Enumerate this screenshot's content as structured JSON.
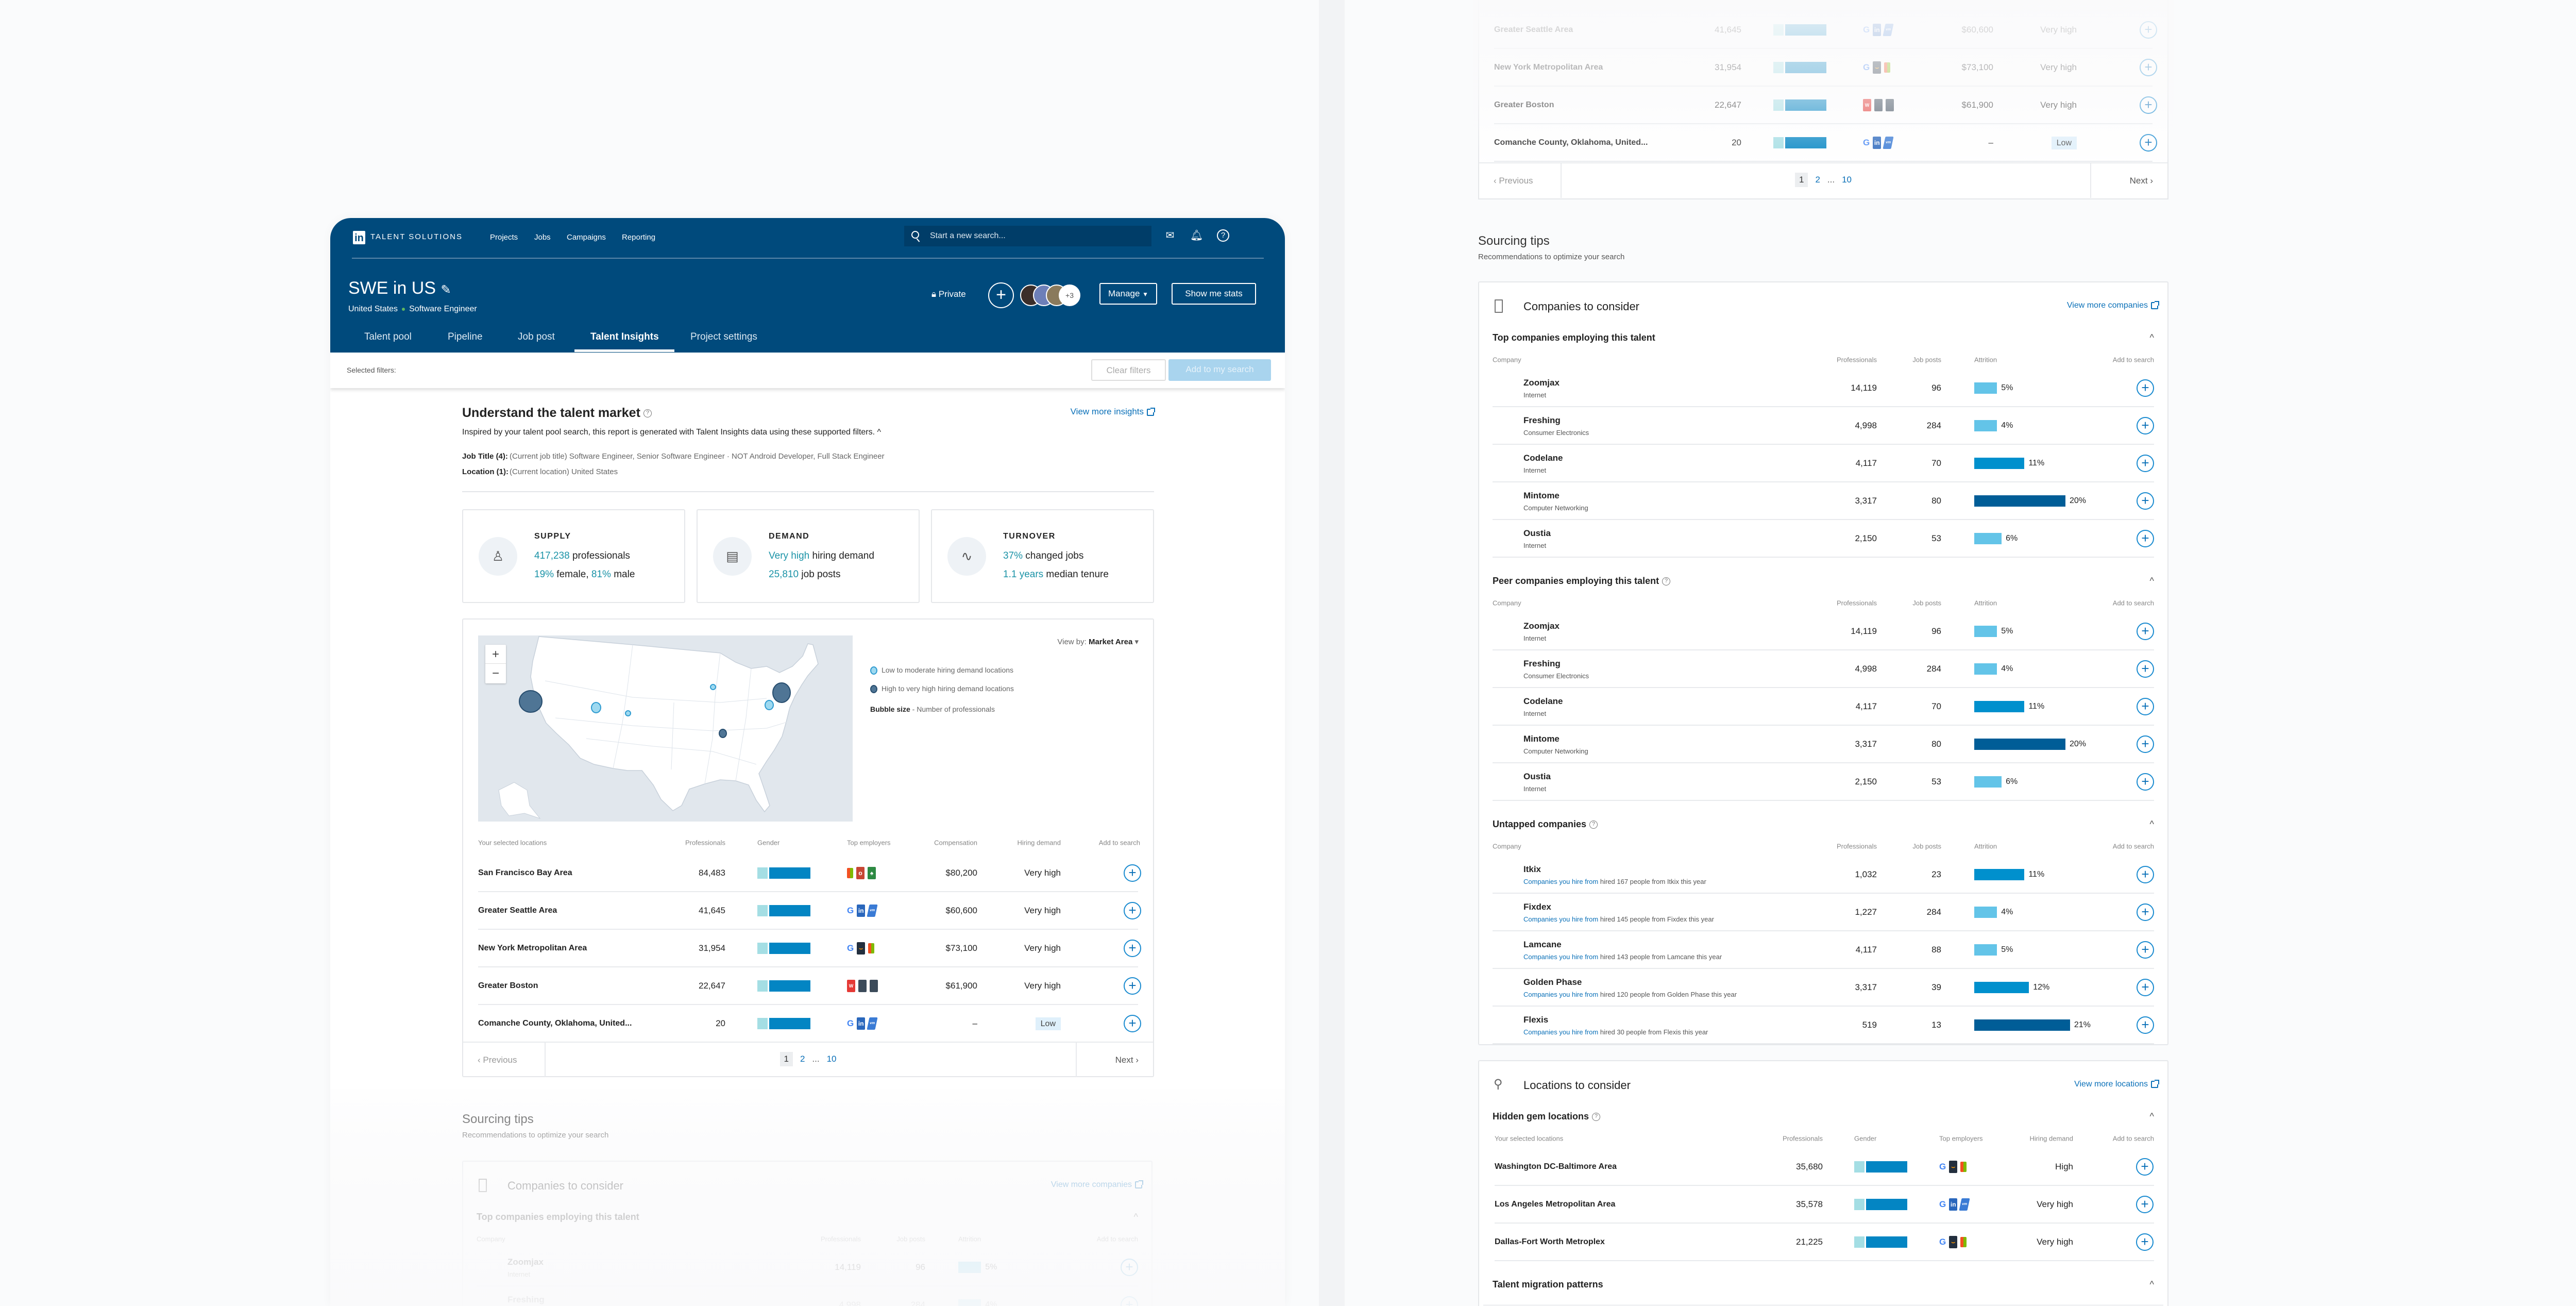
{
  "header": {
    "logo": "in",
    "brand": "TALENT SOLUTIONS",
    "nav": [
      "Projects",
      "Jobs",
      "Campaigns",
      "Reporting"
    ],
    "search_placeholder": "Start a new search...",
    "project_title": "SWE in US",
    "breadcrumb": [
      "United States",
      "Software Engineer"
    ],
    "privacy": "Private",
    "avatars_more": "+3",
    "manage": "Manage",
    "show_stats": "Show me stats",
    "tabs": [
      "Talent pool",
      "Pipeline",
      "Job post",
      "Talent Insights",
      "Project settings"
    ]
  },
  "filters": {
    "label": "Selected filters:",
    "clear": "Clear filters",
    "add": "Add to my search"
  },
  "insights": {
    "title": "Understand the talent market",
    "link": "View more insights",
    "description": "Inspired by your talent pool search, this report is generated with Talent Insights data using these supported filters.",
    "job_title_label": "Job Title (4):",
    "job_title_value": "(Current job title) Software Engineer, Senior Software Engineer · NOT Android Developer, Full Stack Engineer",
    "location_label": "Location (1):",
    "location_value": "(Current location) United States"
  },
  "cards": [
    {
      "label": "SUPPLY",
      "icon": "person-icon",
      "line1": [
        {
          "t": "417,238",
          "hl": true
        },
        {
          "t": " professionals"
        }
      ],
      "line2": [
        {
          "t": "19%",
          "hl": true
        },
        {
          "t": " female, "
        },
        {
          "t": "81%",
          "hl": true
        },
        {
          "t": " male"
        }
      ]
    },
    {
      "label": "DEMAND",
      "icon": "briefcase-icon",
      "line1": [
        {
          "t": "Very high",
          "hl": true
        },
        {
          "t": " hiring demand"
        }
      ],
      "line2": [
        {
          "t": "25,810",
          "hl": true
        },
        {
          "t": " job posts"
        }
      ]
    },
    {
      "label": "TURNOVER",
      "icon": "pulse-icon",
      "line1": [
        {
          "t": "37%",
          "hl": true
        },
        {
          "t": " changed jobs"
        }
      ],
      "line2": [
        {
          "t": "1.1 years",
          "hl": true
        },
        {
          "t": " median tenure"
        }
      ]
    }
  ],
  "map": {
    "view_by_label": "View by:",
    "view_by_value": "Market Area",
    "legend_low": "Low to moderate hiring demand locations",
    "legend_high": "High to very high hiring demand locations",
    "bubble_label": "Bubble size",
    "bubble_desc": " - Number of professionals",
    "zoom_in": "+",
    "zoom_out": "−"
  },
  "locations": {
    "headers": [
      "Your selected locations",
      "Professionals",
      "Gender",
      "Top employers",
      "Compensation",
      "Hiring demand",
      "Add to search"
    ],
    "rows": [
      {
        "name": "San Francisco Bay Area",
        "professionals": "84,483",
        "female_pct": 19,
        "employers": [
          "microsoft",
          "oracle",
          "starbucks"
        ],
        "compensation": "$80,200",
        "demand": "Very high"
      },
      {
        "name": "Greater Seattle Area",
        "professionals": "41,645",
        "female_pct": 19,
        "employers": [
          "google",
          "linkedin",
          "vmware"
        ],
        "compensation": "$60,600",
        "demand": "Very high"
      },
      {
        "name": "New York Metropolitan Area",
        "professionals": "31,954",
        "female_pct": 19,
        "employers": [
          "google",
          "amazon",
          "microsoft"
        ],
        "compensation": "$73,100",
        "demand": "Very high"
      },
      {
        "name": "Greater Boston",
        "professionals": "22,647",
        "female_pct": 19,
        "employers": [
          "wayfair",
          "dark-company",
          "dark-company"
        ],
        "compensation": "$61,900",
        "demand": "Very high"
      },
      {
        "name": "Comanche County, Oklahoma, United...",
        "professionals": "20",
        "female_pct": 19,
        "employers": [
          "google",
          "linkedin",
          "vmware"
        ],
        "compensation": "–",
        "demand": "Low"
      }
    ],
    "pagination": {
      "previous": "Previous",
      "next": "Next",
      "pages": [
        "1",
        "2",
        "...",
        "10"
      ],
      "current": "1"
    }
  },
  "sourcing_left": {
    "title": "Sourcing tips",
    "subtitle": "Recommendations to optimize your search",
    "card_title": "Companies to consider",
    "card_link": "View more companies",
    "section": "Top companies employing this talent",
    "headers": [
      "Company",
      "Professionals",
      "Job posts",
      "Attrition",
      "Add to search"
    ],
    "rows": [
      {
        "name": "Zoomjax",
        "industry": "Internet",
        "professionals": "14,119",
        "jobs": "96",
        "attrition": 5
      },
      {
        "name": "Freshing",
        "industry": "Consumer Electronics",
        "professionals": "4,998",
        "jobs": "284",
        "attrition": 4
      }
    ]
  },
  "right_prev": {
    "rows": [
      {
        "name": "Greater Seattle Area",
        "professionals": "41,645",
        "female_pct": 19,
        "employers": [
          "google",
          "linkedin",
          "vmware"
        ],
        "compensation": "$60,600",
        "demand": "Very high"
      },
      {
        "name": "New York Metropolitan Area",
        "professionals": "31,954",
        "female_pct": 19,
        "employers": [
          "google",
          "amazon",
          "microsoft"
        ],
        "compensation": "$73,100",
        "demand": "Very high"
      },
      {
        "name": "Greater Boston",
        "professionals": "22,647",
        "female_pct": 19,
        "employers": [
          "wayfair",
          "dark-company",
          "dark-company"
        ],
        "compensation": "$61,900",
        "demand": "Very high"
      },
      {
        "name": "Comanche County, Oklahoma, United...",
        "professionals": "20",
        "female_pct": 19,
        "employers": [
          "google",
          "linkedin",
          "vmware"
        ],
        "compensation": "–",
        "demand": "Low"
      }
    ],
    "pagination": {
      "previous": "Previous",
      "next": "Next",
      "pages": [
        "1",
        "2",
        "...",
        "10"
      ]
    }
  },
  "sourcing_right": {
    "title": "Sourcing tips",
    "subtitle": "Recommendations to optimize your search",
    "companies": {
      "title": "Companies to consider",
      "link": "View more companies",
      "headers": [
        "Company",
        "Professionals",
        "Job posts",
        "Attrition",
        "Add to search"
      ],
      "top": {
        "title": "Top companies employing this talent",
        "rows": [
          {
            "name": "Zoomjax",
            "industry": "Internet",
            "professionals": "14,119",
            "jobs": "96",
            "attrition": 5
          },
          {
            "name": "Freshing",
            "industry": "Consumer Electronics",
            "professionals": "4,998",
            "jobs": "284",
            "attrition": 4
          },
          {
            "name": "Codelane",
            "industry": "Internet",
            "professionals": "4,117",
            "jobs": "70",
            "attrition": 11
          },
          {
            "name": "Mintome",
            "industry": "Computer Networking",
            "professionals": "3,317",
            "jobs": "80",
            "attrition": 20
          },
          {
            "name": "Oustia",
            "industry": "Internet",
            "professionals": "2,150",
            "jobs": "53",
            "attrition": 6
          }
        ]
      },
      "peer": {
        "title": "Peer companies employing this talent",
        "rows": [
          {
            "name": "Zoomjax",
            "industry": "Internet",
            "professionals": "14,119",
            "jobs": "96",
            "attrition": 5
          },
          {
            "name": "Freshing",
            "industry": "Consumer Electronics",
            "professionals": "4,998",
            "jobs": "284",
            "attrition": 4
          },
          {
            "name": "Codelane",
            "industry": "Internet",
            "professionals": "4,117",
            "jobs": "70",
            "attrition": 11
          },
          {
            "name": "Mintome",
            "industry": "Computer Networking",
            "professionals": "3,317",
            "jobs": "80",
            "attrition": 20
          },
          {
            "name": "Oustia",
            "industry": "Internet",
            "professionals": "2,150",
            "jobs": "53",
            "attrition": 6
          }
        ]
      },
      "untapped": {
        "title": "Untapped companies",
        "rows": [
          {
            "name": "Itkix",
            "note_link": "Companies you hire from",
            "note": " hired 167 people from Itkix this year",
            "professionals": "1,032",
            "jobs": "23",
            "attrition": 11
          },
          {
            "name": "Fixdex",
            "note_link": "Companies you hire from",
            "note": " hired 145 people from Fixdex this year",
            "professionals": "1,227",
            "jobs": "284",
            "attrition": 4
          },
          {
            "name": "Lamcane",
            "note_link": "Companies you hire from",
            "note": " hired 143 people from Lamcane this year",
            "professionals": "4,117",
            "jobs": "88",
            "attrition": 5
          },
          {
            "name": "Golden Phase",
            "note_link": "Companies you hire from",
            "note": " hired 120 people from Golden Phase this year",
            "professionals": "3,317",
            "jobs": "39",
            "attrition": 12
          },
          {
            "name": "Flexis",
            "note_link": "Companies you hire from",
            "note": " hired 30 people from Flexis this year",
            "professionals": "519",
            "jobs": "13",
            "attrition": 21
          }
        ]
      }
    },
    "locations": {
      "title": "Locations to consider",
      "link": "View more locations",
      "hidden_title": "Hidden gem locations",
      "headers": [
        "Your selected locations",
        "Professionals",
        "Gender",
        "Top employers",
        "Hiring demand",
        "Add to search"
      ],
      "rows": [
        {
          "name": "Washington DC-Baltimore Area",
          "professionals": "35,680",
          "female_pct": 19,
          "employers": [
            "google",
            "amazon",
            "microsoft"
          ],
          "demand": "High"
        },
        {
          "name": "Los Angeles Metropolitan Area",
          "professionals": "35,578",
          "female_pct": 19,
          "employers": [
            "google",
            "linkedin",
            "vmware"
          ],
          "demand": "Very high"
        },
        {
          "name": "Dallas-Fort Worth Metroplex",
          "professionals": "21,225",
          "female_pct": 19,
          "employers": [
            "google",
            "amazon",
            "microsoft"
          ],
          "demand": "Very high"
        }
      ],
      "migration_title": "Talent migration patterns"
    }
  }
}
